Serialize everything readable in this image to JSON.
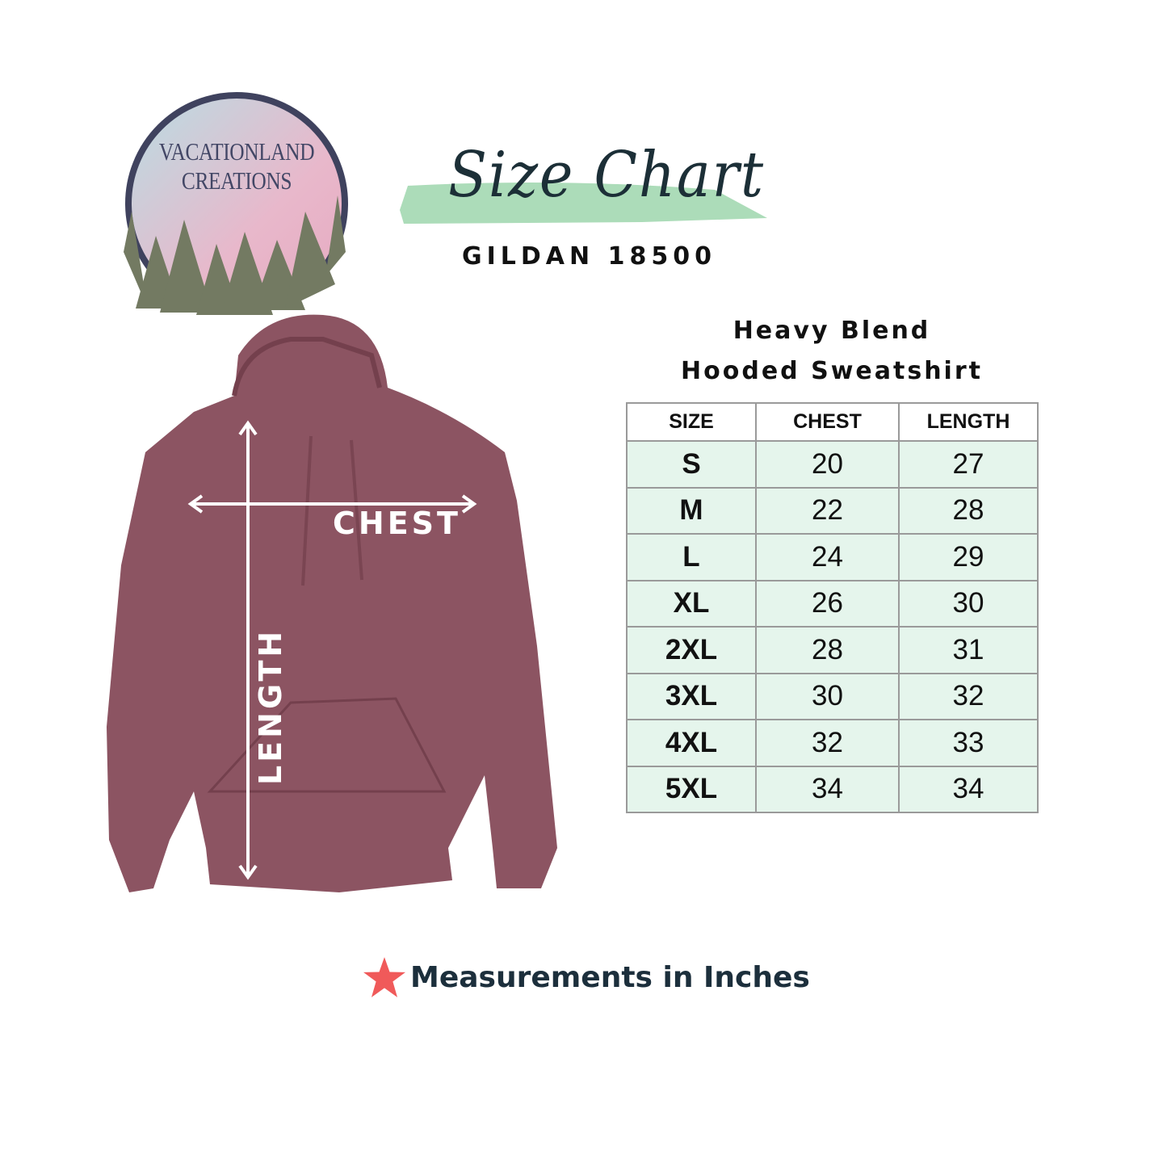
{
  "logo": {
    "line1": "VACATIONLAND",
    "line2": "CREATIONS"
  },
  "header": {
    "title": "Size Chart",
    "model": "GILDAN 18500"
  },
  "product": {
    "line1": "Heavy Blend",
    "line2": "Hooded Sweatshirt"
  },
  "diagram": {
    "chest_label": "CHEST",
    "length_label": "LENGTH",
    "garment_color": "#8c5462"
  },
  "table": {
    "headers": [
      "SIZE",
      "CHEST",
      "LENGTH"
    ],
    "rows": [
      [
        "S",
        "20",
        "27"
      ],
      [
        "M",
        "22",
        "28"
      ],
      [
        "L",
        "24",
        "29"
      ],
      [
        "XL",
        "26",
        "30"
      ],
      [
        "2XL",
        "28",
        "31"
      ],
      [
        "3XL",
        "30",
        "32"
      ],
      [
        "4XL",
        "32",
        "33"
      ],
      [
        "5XL",
        "34",
        "34"
      ]
    ],
    "row_color": "#e5f5ec"
  },
  "note": {
    "icon": "star-icon",
    "text": "Measurements in Inches",
    "star_color": "#f05a5a"
  }
}
